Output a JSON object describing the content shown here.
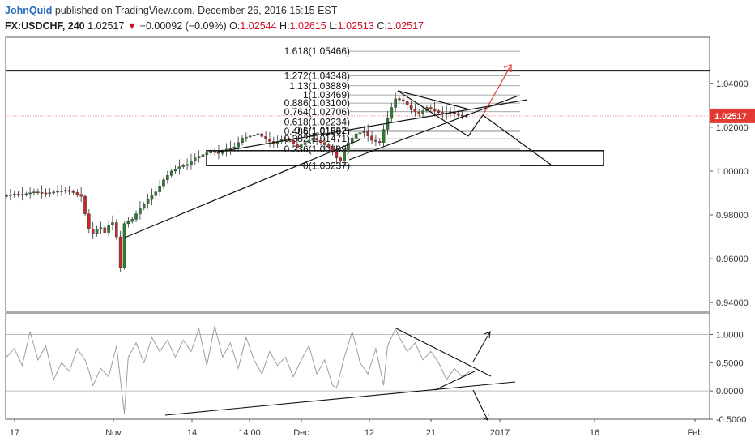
{
  "header": {
    "author": "JohnQuid",
    "published_text": "published on TradingView.com, December 26, 2016 15:15 EST",
    "symbol": "FX:USDCHF, 240",
    "last": "1.02517",
    "arrow": "▼",
    "change": "−0.00092 (−0.09%)",
    "o_label": "O:",
    "o_value": "1.02544",
    "h_label": "H:",
    "h_value": "1.02615",
    "l_label": "L:",
    "l_value": "1.02513",
    "c_label": "C:",
    "c_value": "1.02517"
  },
  "colors": {
    "up": "#2e7d32",
    "down": "#c62828",
    "price_tag": "#e53935",
    "arrow_red": "#e53935",
    "osc": "#9e9e9e"
  },
  "chart_data": {
    "type": "candlestick",
    "price_axis": {
      "ticks": [
        "1.04000",
        "1.02000",
        "1.00000",
        "0.98000",
        "0.96000",
        "0.94000"
      ],
      "ylim": [
        0.936,
        1.061
      ]
    },
    "last_price_tag": "1.02517",
    "osc_axis": {
      "ticks": [
        "1.0000",
        "0.5000",
        "0.0000",
        "-0.5000"
      ],
      "ylim": [
        -0.5,
        1.38
      ]
    },
    "x_ticks": [
      "17",
      "Nov",
      "14",
      "14:00",
      "Dec",
      "12",
      "21",
      "2017",
      "16",
      "Feb"
    ],
    "fib_levels": [
      {
        "label": "1.618(1.05466)",
        "price": 1.05466
      },
      {
        "label": "1.272(1.04348)",
        "price": 1.04348
      },
      {
        "label": "1.13(1.03889)",
        "price": 1.03889
      },
      {
        "label": "1(1.03469)",
        "price": 1.03469
      },
      {
        "label": "0.886(1.03100)",
        "price": 1.031
      },
      {
        "label": "0.764(1.02706)",
        "price": 1.02706
      },
      {
        "label": "0.618(1.02234)",
        "price": 1.02234
      },
      {
        "label": "0.5(1.01852)",
        "price": 1.01852
      },
      {
        "label": "0.486(1.01807)",
        "price": 1.01807
      },
      {
        "label": "0.382(1.01471)",
        "price": 1.01471
      },
      {
        "label": "0.236(1.00999)",
        "price": 1.00999
      },
      {
        "label": "0(1.00237)",
        "price": 1.00237
      }
    ],
    "horizontal_level": 1.0458,
    "support_box": {
      "top": 1.0093,
      "bottom": 1.0025
    },
    "price_path": [
      [
        0,
        0.9885
      ],
      [
        3,
        0.9895
      ],
      [
        5,
        0.9892
      ],
      [
        8,
        0.9905
      ],
      [
        11,
        0.9898
      ],
      [
        14,
        0.9908
      ],
      [
        16,
        0.9912
      ],
      [
        18,
        0.9902
      ],
      [
        20,
        0.9885
      ],
      [
        21,
        0.9805
      ],
      [
        22,
        0.9735
      ],
      [
        23,
        0.9715
      ],
      [
        24,
        0.9735
      ],
      [
        25,
        0.9742
      ],
      [
        26,
        0.972
      ],
      [
        27,
        0.9755
      ],
      [
        28,
        0.9765
      ],
      [
        29,
        0.97
      ],
      [
        30,
        0.956
      ],
      [
        31,
        0.976
      ],
      [
        33,
        0.978
      ],
      [
        35,
        0.983
      ],
      [
        37,
        0.987
      ],
      [
        39,
        0.9905
      ],
      [
        41,
        0.996
      ],
      [
        43,
        1.0
      ],
      [
        45,
        1.002
      ],
      [
        47,
        1.003
      ],
      [
        49,
        1.006
      ],
      [
        51,
        1.0075
      ],
      [
        53,
        1.009
      ],
      [
        55,
        1.008
      ],
      [
        57,
        1.01
      ],
      [
        59,
        1.011
      ],
      [
        61,
        1.015
      ],
      [
        63,
        1.016
      ],
      [
        65,
        1.017
      ],
      [
        67,
        1.0145
      ],
      [
        69,
        1.0125
      ],
      [
        71,
        1.0145
      ],
      [
        73,
        1.014
      ],
      [
        75,
        1.011
      ],
      [
        77,
        1.013
      ],
      [
        79,
        1.015
      ],
      [
        81,
        1.013
      ],
      [
        83,
        1.011
      ],
      [
        85,
        1.006
      ],
      [
        86,
        1.0045
      ],
      [
        88,
        1.013
      ],
      [
        90,
        1.017
      ],
      [
        92,
        1.018
      ],
      [
        94,
        1.014
      ],
      [
        96,
        1.013
      ],
      [
        97,
        1.019
      ],
      [
        99,
        1.029
      ],
      [
        100,
        1.033
      ],
      [
        102,
        1.032
      ],
      [
        104,
        1.028
      ],
      [
        106,
        1.026
      ],
      [
        108,
        1.029
      ],
      [
        110,
        1.0275
      ],
      [
        112,
        1.026
      ],
      [
        114,
        1.027
      ],
      [
        116,
        1.0255
      ],
      [
        118,
        1.0252
      ]
    ],
    "osc_path": [
      [
        0,
        0.6
      ],
      [
        2,
        0.75
      ],
      [
        4,
        0.45
      ],
      [
        6,
        1.05
      ],
      [
        8,
        0.55
      ],
      [
        10,
        0.8
      ],
      [
        12,
        0.2
      ],
      [
        14,
        0.5
      ],
      [
        16,
        0.35
      ],
      [
        18,
        0.75
      ],
      [
        20,
        0.55
      ],
      [
        21,
        0.35
      ],
      [
        22,
        0.1
      ],
      [
        24,
        0.4
      ],
      [
        26,
        0.25
      ],
      [
        28,
        0.8
      ],
      [
        30,
        -0.4
      ],
      [
        31,
        0.6
      ],
      [
        33,
        0.85
      ],
      [
        35,
        0.5
      ],
      [
        37,
        0.95
      ],
      [
        39,
        0.7
      ],
      [
        41,
        0.9
      ],
      [
        43,
        0.6
      ],
      [
        45,
        0.9
      ],
      [
        47,
        0.7
      ],
      [
        49,
        1.1
      ],
      [
        51,
        0.45
      ],
      [
        53,
        1.15
      ],
      [
        55,
        0.6
      ],
      [
        57,
        0.85
      ],
      [
        59,
        0.4
      ],
      [
        61,
        0.95
      ],
      [
        63,
        0.55
      ],
      [
        65,
        0.3
      ],
      [
        67,
        0.7
      ],
      [
        69,
        0.45
      ],
      [
        71,
        0.6
      ],
      [
        73,
        0.25
      ],
      [
        75,
        0.55
      ],
      [
        77,
        0.8
      ],
      [
        79,
        0.3
      ],
      [
        81,
        0.55
      ],
      [
        83,
        0.1
      ],
      [
        84,
        0.05
      ],
      [
        86,
        0.6
      ],
      [
        88,
        1.05
      ],
      [
        90,
        0.5
      ],
      [
        92,
        0.3
      ],
      [
        94,
        0.75
      ],
      [
        96,
        0.1
      ],
      [
        97,
        0.8
      ],
      [
        99,
        1.1
      ],
      [
        100,
        0.95
      ],
      [
        102,
        0.7
      ],
      [
        104,
        0.85
      ],
      [
        106,
        0.55
      ],
      [
        108,
        0.7
      ],
      [
        110,
        0.5
      ],
      [
        112,
        0.2
      ],
      [
        114,
        0.4
      ],
      [
        116,
        0.25
      ],
      [
        118,
        0.35
      ]
    ]
  }
}
